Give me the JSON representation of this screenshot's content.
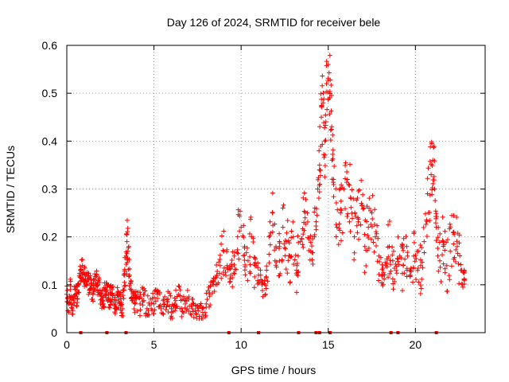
{
  "chart_data": {
    "type": "scatter",
    "title": "Day 126 of 2024, SRMTID for receiver bele",
    "xlabel": "GPS time / hours",
    "ylabel": "SRMTID / TECUs",
    "xlim": [
      0,
      24
    ],
    "ylim": [
      0,
      0.6
    ],
    "x_ticks": [
      0,
      5,
      10,
      15,
      20
    ],
    "x_tick_labels": [
      "0",
      "5",
      "10",
      "15",
      "20"
    ],
    "y_ticks": [
      0,
      0.1,
      0.2,
      0.3,
      0.4,
      0.5,
      0.6
    ],
    "y_tick_labels": [
      "0",
      "0.1",
      "0.2",
      "0.3",
      "0.4",
      "0.5",
      "0.6"
    ],
    "grid": true,
    "marker": "+",
    "color": "#ff0000",
    "series": [
      {
        "name": "SRMTID",
        "points": [
          [
            0.0,
            0.08
          ],
          [
            0.1,
            0.06
          ],
          [
            0.2,
            0.09
          ],
          [
            0.3,
            0.05
          ],
          [
            0.4,
            0.07
          ],
          [
            0.5,
            0.09
          ],
          [
            0.6,
            0.07
          ],
          [
            0.7,
            0.1
          ],
          [
            0.8,
            0.13
          ],
          [
            0.9,
            0.14
          ],
          [
            1.0,
            0.12
          ],
          [
            1.1,
            0.1
          ],
          [
            1.2,
            0.11
          ],
          [
            1.3,
            0.09
          ],
          [
            1.4,
            0.1
          ],
          [
            1.5,
            0.08
          ],
          [
            1.6,
            0.11
          ],
          [
            1.7,
            0.12
          ],
          [
            1.8,
            0.1
          ],
          [
            1.9,
            0.08
          ],
          [
            2.0,
            0.07
          ],
          [
            2.1,
            0.06
          ],
          [
            2.2,
            0.09
          ],
          [
            2.3,
            0.1
          ],
          [
            2.4,
            0.08
          ],
          [
            2.5,
            0.07
          ],
          [
            2.6,
            0.09
          ],
          [
            2.7,
            0.06
          ],
          [
            2.8,
            0.05
          ],
          [
            2.9,
            0.08
          ],
          [
            3.0,
            0.07
          ],
          [
            3.1,
            0.06
          ],
          [
            3.2,
            0.05
          ],
          [
            3.3,
            0.12
          ],
          [
            3.4,
            0.16
          ],
          [
            3.45,
            0.19
          ],
          [
            3.5,
            0.17
          ],
          [
            3.6,
            0.12
          ],
          [
            3.7,
            0.09
          ],
          [
            3.8,
            0.08
          ],
          [
            3.9,
            0.06
          ],
          [
            4.0,
            0.07
          ],
          [
            4.2,
            0.06
          ],
          [
            4.4,
            0.08
          ],
          [
            4.6,
            0.05
          ],
          [
            4.8,
            0.07
          ],
          [
            5.0,
            0.06
          ],
          [
            5.2,
            0.08
          ],
          [
            5.4,
            0.05
          ],
          [
            5.6,
            0.06
          ],
          [
            5.8,
            0.07
          ],
          [
            6.0,
            0.05
          ],
          [
            6.2,
            0.06
          ],
          [
            6.4,
            0.08
          ],
          [
            6.6,
            0.05
          ],
          [
            6.8,
            0.06
          ],
          [
            7.0,
            0.07
          ],
          [
            7.2,
            0.05
          ],
          [
            7.4,
            0.04
          ],
          [
            7.6,
            0.03
          ],
          [
            7.8,
            0.05
          ],
          [
            8.0,
            0.06
          ],
          [
            8.2,
            0.08
          ],
          [
            8.4,
            0.1
          ],
          [
            8.6,
            0.12
          ],
          [
            8.8,
            0.14
          ],
          [
            9.0,
            0.17
          ],
          [
            9.2,
            0.14
          ],
          [
            9.4,
            0.12
          ],
          [
            9.6,
            0.16
          ],
          [
            9.8,
            0.2
          ],
          [
            10.0,
            0.22
          ],
          [
            10.2,
            0.18
          ],
          [
            10.4,
            0.15
          ],
          [
            10.6,
            0.2
          ],
          [
            10.8,
            0.14
          ],
          [
            11.0,
            0.12
          ],
          [
            11.2,
            0.1
          ],
          [
            11.4,
            0.08
          ],
          [
            11.6,
            0.2
          ],
          [
            11.8,
            0.25
          ],
          [
            12.0,
            0.18
          ],
          [
            12.2,
            0.15
          ],
          [
            12.4,
            0.22
          ],
          [
            12.6,
            0.19
          ],
          [
            12.8,
            0.16
          ],
          [
            13.0,
            0.2
          ],
          [
            13.2,
            0.14
          ],
          [
            13.4,
            0.19
          ],
          [
            13.6,
            0.23
          ],
          [
            13.8,
            0.25
          ],
          [
            14.0,
            0.17
          ],
          [
            14.2,
            0.2
          ],
          [
            14.4,
            0.3
          ],
          [
            14.5,
            0.35
          ],
          [
            14.6,
            0.45
          ],
          [
            14.7,
            0.48
          ],
          [
            14.8,
            0.4
          ],
          [
            14.9,
            0.52
          ],
          [
            15.0,
            0.56
          ],
          [
            15.1,
            0.5
          ],
          [
            15.2,
            0.43
          ],
          [
            15.3,
            0.32
          ],
          [
            15.5,
            0.22
          ],
          [
            15.7,
            0.25
          ],
          [
            15.9,
            0.3
          ],
          [
            16.1,
            0.32
          ],
          [
            16.3,
            0.28
          ],
          [
            16.5,
            0.2
          ],
          [
            16.7,
            0.24
          ],
          [
            16.9,
            0.27
          ],
          [
            17.1,
            0.18
          ],
          [
            17.3,
            0.22
          ],
          [
            17.5,
            0.25
          ],
          [
            17.7,
            0.2
          ],
          [
            17.9,
            0.16
          ],
          [
            18.1,
            0.12
          ],
          [
            18.3,
            0.14
          ],
          [
            18.5,
            0.18
          ],
          [
            18.7,
            0.15
          ],
          [
            18.9,
            0.13
          ],
          [
            19.1,
            0.16
          ],
          [
            19.3,
            0.14
          ],
          [
            19.5,
            0.18
          ],
          [
            19.7,
            0.12
          ],
          [
            19.9,
            0.16
          ],
          [
            20.1,
            0.17
          ],
          [
            20.3,
            0.14
          ],
          [
            20.5,
            0.19
          ],
          [
            20.7,
            0.29
          ],
          [
            20.9,
            0.33
          ],
          [
            21.0,
            0.36
          ],
          [
            21.1,
            0.3
          ],
          [
            21.2,
            0.22
          ],
          [
            21.4,
            0.15
          ],
          [
            21.6,
            0.19
          ],
          [
            21.8,
            0.14
          ],
          [
            22.0,
            0.17
          ],
          [
            22.2,
            0.21
          ],
          [
            22.4,
            0.18
          ],
          [
            22.6,
            0.13
          ],
          [
            22.8,
            0.11
          ]
        ]
      }
    ],
    "gap_markers_x": [
      0.8,
      2.3,
      3.4,
      9.3,
      11.0,
      13.3,
      14.3,
      14.5,
      15.1,
      18.6,
      19.0,
      21.2
    ]
  }
}
